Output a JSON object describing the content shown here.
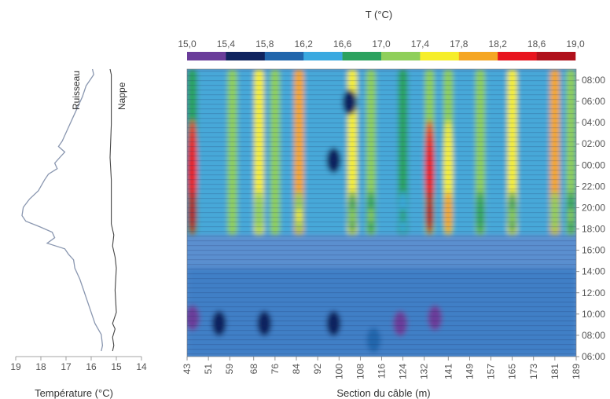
{
  "colorbar": {
    "title": "T (°C)",
    "ticks": [
      "15,0",
      "15,4",
      "15,8",
      "16,2",
      "16,6",
      "17,0",
      "17,4",
      "17,8",
      "18,2",
      "18,6",
      "19,0"
    ],
    "colors": [
      "#6a3d9a",
      "#10245f",
      "#2166ac",
      "#3aa9e0",
      "#2ca25f",
      "#8fcf5a",
      "#f6ee2a",
      "#f5a623",
      "#e8141e",
      "#b0101b"
    ]
  },
  "chart_data": [
    {
      "type": "line",
      "orientation": "vertical-profile",
      "xlabel": "Température (°C)",
      "x_ticks": [
        "19",
        "18",
        "17",
        "16",
        "15",
        "14"
      ],
      "xlim": [
        19,
        14
      ],
      "ylim": [
        "06:00",
        "08:00"
      ],
      "series": [
        {
          "name": "Ruisseau",
          "color": "#8a97b0",
          "points": [
            [
              "08:00",
              15.95
            ],
            [
              "07:30",
              15.9
            ],
            [
              "07:00",
              16.05
            ],
            [
              "06:30",
              16.2
            ],
            [
              "05:30",
              16.35
            ],
            [
              "04:30",
              16.55
            ],
            [
              "03:30",
              16.75
            ],
            [
              "02:30",
              16.95
            ],
            [
              "01:30",
              17.15
            ],
            [
              "01:00",
              17.3
            ],
            [
              "00:30",
              17.05
            ],
            [
              "00:00",
              17.25
            ],
            [
              "23:30",
              17.45
            ],
            [
              "23:00",
              17.35
            ],
            [
              "22:30",
              17.7
            ],
            [
              "22:00",
              17.85
            ],
            [
              "21:00",
              18.1
            ],
            [
              "20:15",
              18.45
            ],
            [
              "19:30",
              18.7
            ],
            [
              "18:45",
              18.75
            ],
            [
              "18:15",
              18.6
            ],
            [
              "17:45",
              18.05
            ],
            [
              "17:15",
              17.55
            ],
            [
              "16:45",
              17.45
            ],
            [
              "16:15",
              17.75
            ],
            [
              "15:45",
              17.05
            ],
            [
              "15:15",
              16.9
            ],
            [
              "14:45",
              16.7
            ],
            [
              "14:00",
              16.65
            ],
            [
              "13:00",
              16.45
            ],
            [
              "12:00",
              16.3
            ],
            [
              "11:00",
              16.15
            ],
            [
              "10:00",
              16.0
            ],
            [
              "09:00",
              15.85
            ],
            [
              "08:00",
              15.6
            ],
            [
              "07:00",
              15.55
            ],
            [
              "06:30",
              15.6
            ]
          ]
        },
        {
          "name": "Nappe",
          "color": "#444444",
          "points": [
            [
              "08:00",
              15.25
            ],
            [
              "07:30",
              15.2
            ],
            [
              "06:00",
              15.2
            ],
            [
              "03:00",
              15.2
            ],
            [
              "00:00",
              15.25
            ],
            [
              "22:00",
              15.2
            ],
            [
              "19:00",
              15.2
            ],
            [
              "18:00",
              15.2
            ],
            [
              "17:00",
              15.1
            ],
            [
              "16:00",
              15.15
            ],
            [
              "15:00",
              15.05
            ],
            [
              "14:00",
              15.0
            ],
            [
              "12:00",
              15.05
            ],
            [
              "10:00",
              15.0
            ],
            [
              "09:00",
              15.15
            ],
            [
              "08:30",
              15.05
            ],
            [
              "07:45",
              15.15
            ],
            [
              "07:00",
              15.1
            ],
            [
              "06:30",
              15.15
            ]
          ]
        }
      ],
      "labels": [
        "Ruisseau",
        "Nappe"
      ]
    },
    {
      "type": "heatmap",
      "title": "T (°C)",
      "xlabel": "Section du câble (m)",
      "x_ticks": [
        "43",
        "51",
        "59",
        "68",
        "76",
        "84",
        "92",
        "100",
        "108",
        "116",
        "124",
        "132",
        "141",
        "149",
        "157",
        "165",
        "173",
        "181",
        "189"
      ],
      "xlim": [
        43,
        189
      ],
      "y_ticks": [
        "08:00",
        "06:00",
        "04:00",
        "02:00",
        "00:00",
        "22:00",
        "20:00",
        "18:00",
        "16:00",
        "14:00",
        "12:00",
        "10:00",
        "08:00",
        "06:00"
      ],
      "ylim": [
        "06:00",
        "08:00"
      ],
      "value_range": [
        15.0,
        19.0
      ],
      "warm_column_profiles": [
        {
          "x": 45,
          "upper": 16.8,
          "peak": 18.8
        },
        {
          "x": 60,
          "upper": 17.4,
          "peak": 17.1
        },
        {
          "x": 70,
          "upper": 17.5,
          "peak": 17.2
        },
        {
          "x": 76,
          "upper": 17.4,
          "peak": 17.0
        },
        {
          "x": 85,
          "upper": 18.0,
          "peak": 17.4
        },
        {
          "x": 105,
          "upper": 17.5,
          "peak": 16.9
        },
        {
          "x": 112,
          "upper": 17.4,
          "peak": 16.8
        },
        {
          "x": 124,
          "upper": 16.9,
          "peak": 16.5
        },
        {
          "x": 134,
          "upper": 17.3,
          "peak": 18.7
        },
        {
          "x": 141,
          "upper": 17.2,
          "peak": 17.8
        },
        {
          "x": 153,
          "upper": 17.0,
          "peak": 16.6
        },
        {
          "x": 165,
          "upper": 17.5,
          "peak": 16.9
        },
        {
          "x": 181,
          "upper": 18.1,
          "peak": 17.2
        },
        {
          "x": 187,
          "upper": 17.3,
          "peak": 16.8
        }
      ],
      "cold_spots": [
        {
          "x": 45,
          "time": "09:30",
          "value": 15.3
        },
        {
          "x": 55,
          "time": "09:00",
          "value": 15.6
        },
        {
          "x": 72,
          "time": "09:00",
          "value": 15.7
        },
        {
          "x": 98,
          "time": "09:00",
          "value": 15.4
        },
        {
          "x": 123,
          "time": "09:00",
          "value": 15.3
        },
        {
          "x": 136,
          "time": "09:30",
          "value": 15.3
        },
        {
          "x": 98,
          "time": "23:45",
          "value": 15.6
        },
        {
          "x": 104,
          "time": "05:00",
          "value": 15.7
        },
        {
          "x": 113,
          "time": "07:30",
          "value": 15.8
        }
      ]
    }
  ]
}
